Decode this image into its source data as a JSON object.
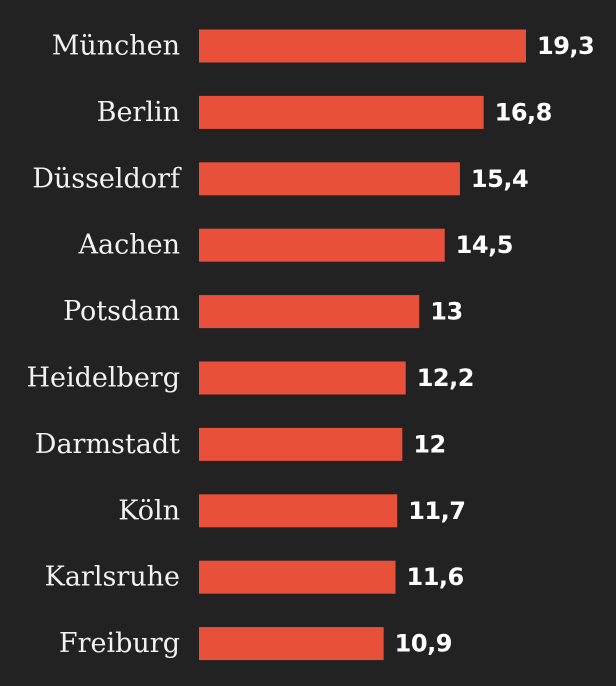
{
  "colors": {
    "background": "#222222",
    "bar": "#e8503a",
    "category_text": "#f2f2f2",
    "value_text": "#ffffff"
  },
  "chart_data": {
    "type": "bar",
    "orientation": "horizontal",
    "title": "",
    "xlabel": "",
    "ylabel": "",
    "grid": false,
    "xlim": [
      0,
      19.3
    ],
    "categories": [
      "München",
      "Berlin",
      "Düsseldorf",
      "Aachen",
      "Potsdam",
      "Heidelberg",
      "Darmstadt",
      "Köln",
      "Karlsruhe",
      "Freiburg"
    ],
    "values": [
      19.3,
      16.8,
      15.4,
      14.5,
      13,
      12.2,
      12,
      11.7,
      11.6,
      10.9
    ],
    "value_labels": [
      "19,3",
      "16,8",
      "15,4",
      "14,5",
      "13",
      "12,2",
      "12",
      "11,7",
      "11,6",
      "10,9"
    ]
  }
}
